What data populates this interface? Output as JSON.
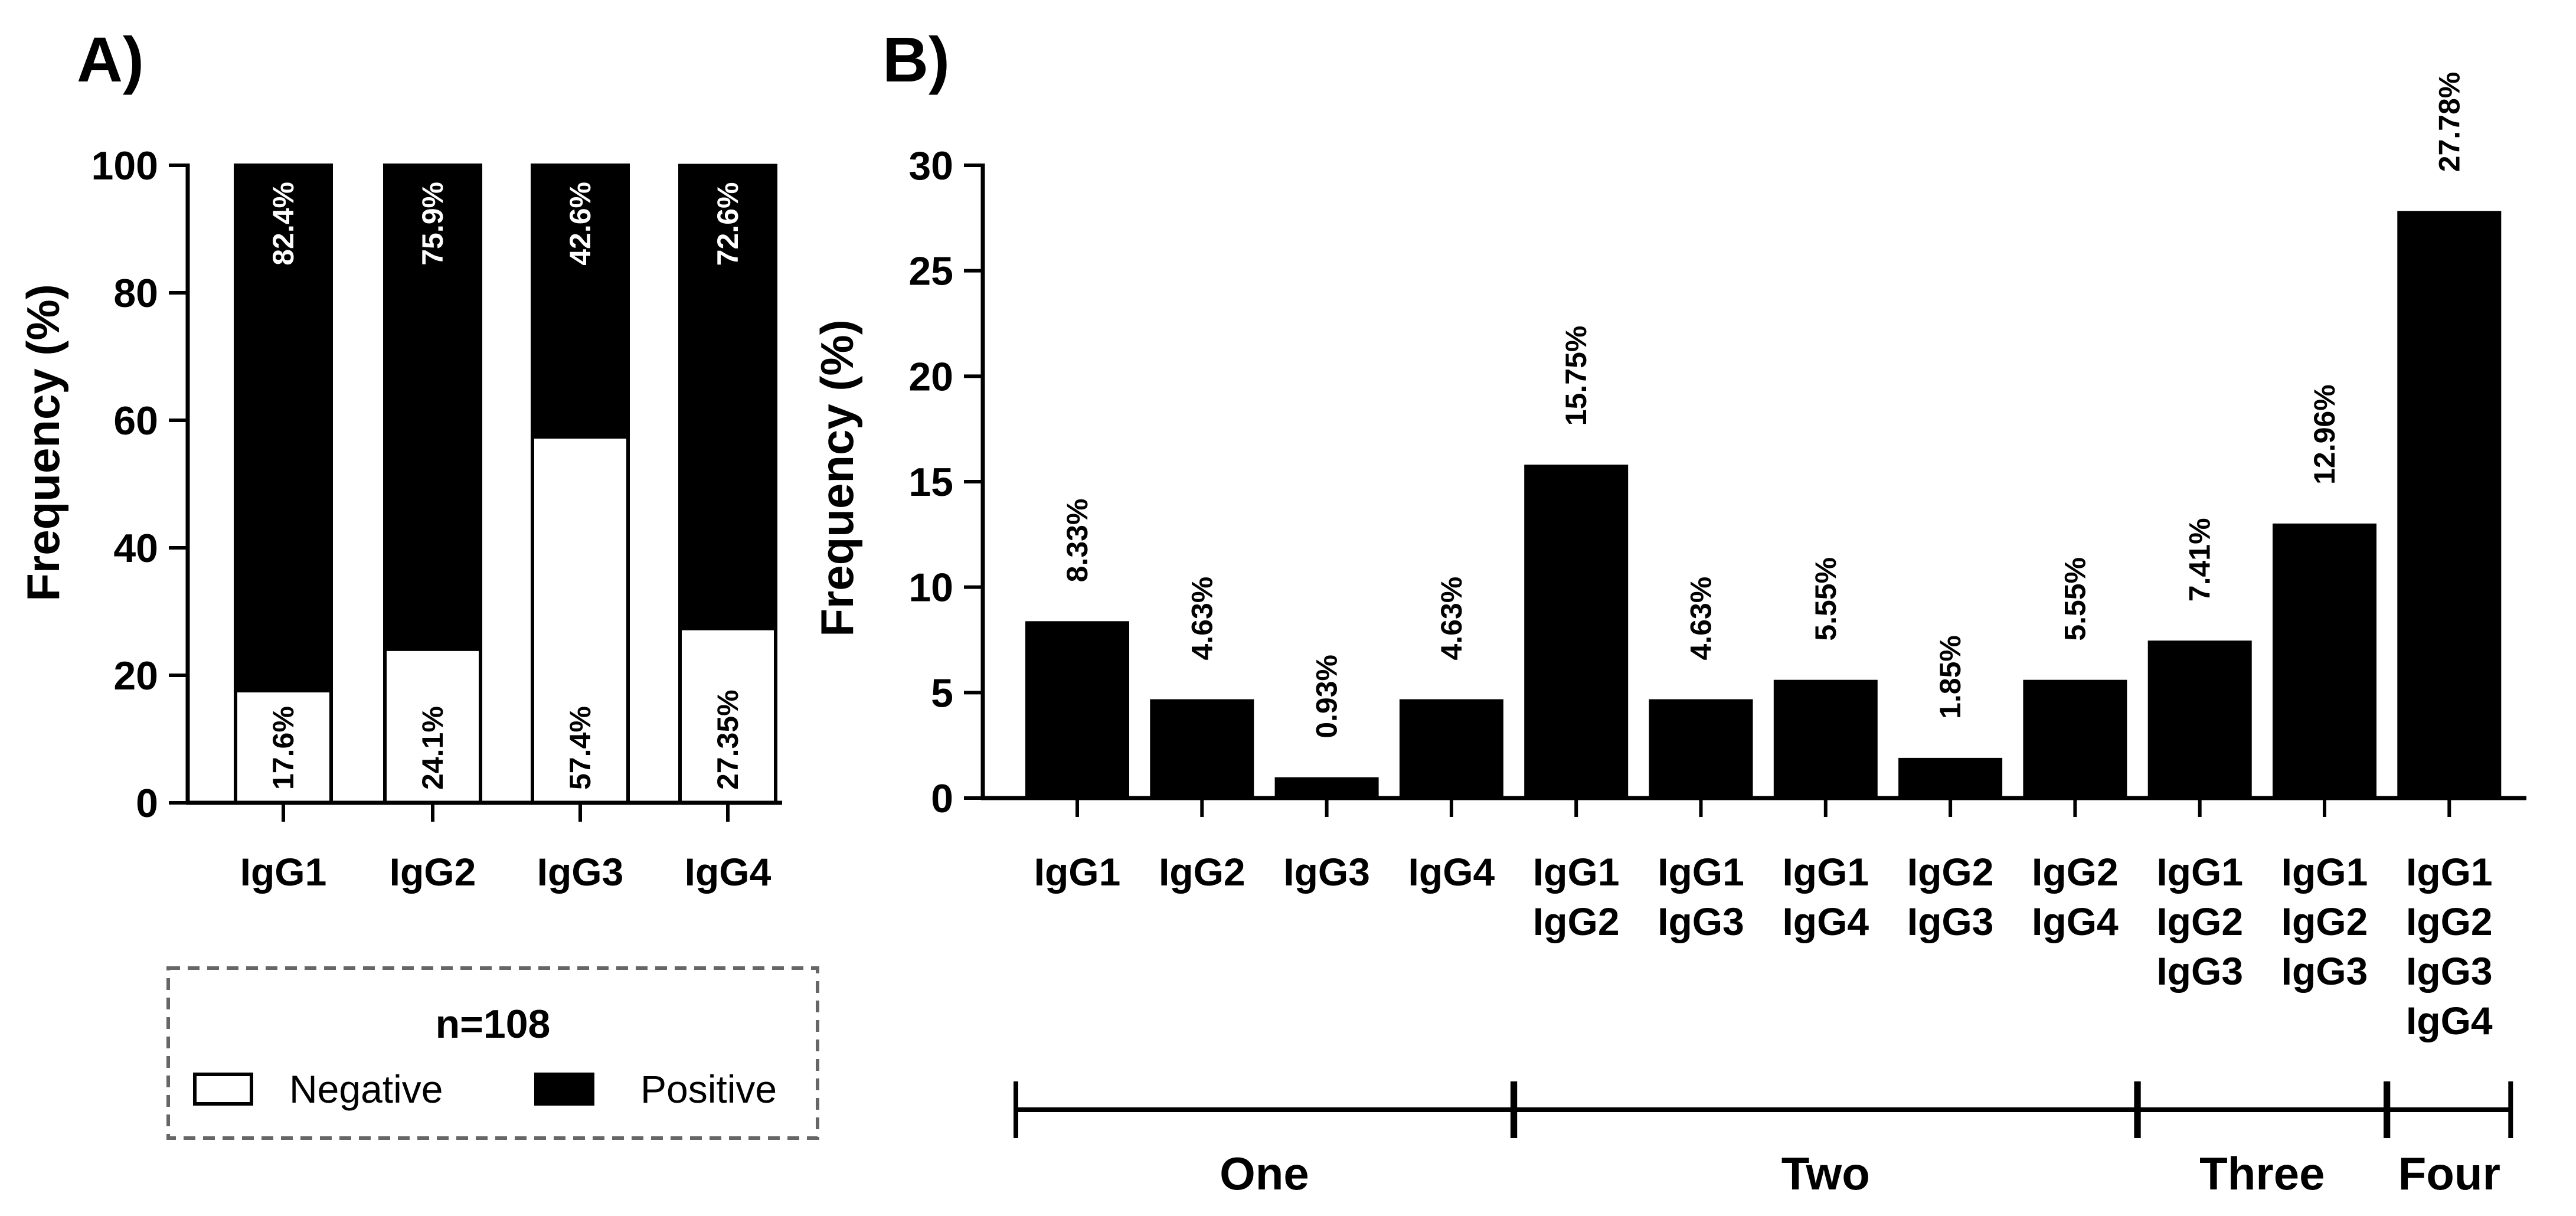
{
  "chart_data": [
    {
      "panel": "A)",
      "type": "bar",
      "stacked": true,
      "title": "",
      "ylabel": "Frequency (%)",
      "ylim": [
        0,
        100
      ],
      "yticks": [
        0,
        20,
        40,
        60,
        80,
        100
      ],
      "categories": [
        "IgG1",
        "IgG2",
        "IgG3",
        "IgG4"
      ],
      "series": [
        {
          "name": "Negative",
          "color": "#ffffff",
          "values": [
            17.6,
            24.1,
            57.4,
            27.35
          ],
          "labels": [
            "17.6%",
            "24.1%",
            "57.4%",
            "27.35%"
          ]
        },
        {
          "name": "Positive",
          "color": "#000000",
          "values": [
            82.4,
            75.9,
            42.6,
            72.6
          ],
          "labels": [
            "82.4%",
            "75.9%",
            "42.6%",
            "72.6%"
          ]
        }
      ],
      "legend": {
        "title": "n=108",
        "entries": [
          {
            "label": "Negative",
            "color": "#ffffff"
          },
          {
            "label": "Positive",
            "color": "#000000"
          }
        ]
      }
    },
    {
      "panel": "B)",
      "type": "bar",
      "title": "",
      "ylabel": "Frequency (%)",
      "ylim": [
        0,
        30
      ],
      "yticks": [
        0,
        5,
        10,
        15,
        20,
        25,
        30
      ],
      "categories": [
        [
          "IgG1"
        ],
        [
          "IgG2"
        ],
        [
          "IgG3"
        ],
        [
          "IgG4"
        ],
        [
          "IgG1",
          "IgG2"
        ],
        [
          "IgG1",
          "IgG3"
        ],
        [
          "IgG1",
          "IgG4"
        ],
        [
          "IgG2",
          "IgG3"
        ],
        [
          "IgG2",
          "IgG4"
        ],
        [
          "IgG1",
          "IgG2",
          "IgG3"
        ],
        [
          "IgG1",
          "IgG2",
          "IgG3"
        ],
        [
          "IgG1",
          "IgG2",
          "IgG3",
          "IgG4"
        ]
      ],
      "values": [
        8.33,
        4.63,
        0.93,
        4.63,
        15.75,
        4.63,
        5.55,
        1.85,
        5.55,
        7.41,
        12.96,
        27.78
      ],
      "labels": [
        "8.33%",
        "4.63%",
        "0.93%",
        "4.63%",
        "15.75%",
        "4.63%",
        "5.55%",
        "1.85%",
        "5.55%",
        "7.41%",
        "12.96%",
        "27.78%"
      ],
      "color": "#000000",
      "groups": [
        {
          "label": "One",
          "from": 0,
          "to": 3
        },
        {
          "label": "Two",
          "from": 4,
          "to": 8
        },
        {
          "label": "Three",
          "from": 9,
          "to": 10
        },
        {
          "label": "Four",
          "from": 11,
          "to": 11
        }
      ]
    }
  ]
}
